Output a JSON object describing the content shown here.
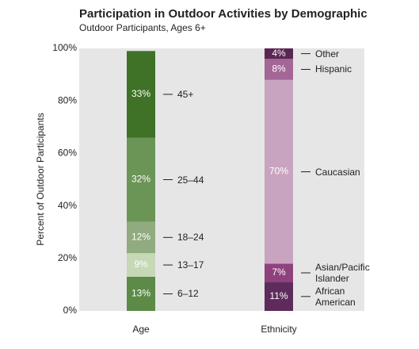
{
  "chart_data": {
    "type": "stacked_bar",
    "title": "Participation in Outdoor Activities by Demographic",
    "subtitle": "Outdoor Participants, Ages 6+",
    "y_label": "Percent of Outdoor Participants",
    "ylim": [
      0,
      100
    ],
    "yticks": [
      {
        "value": 0,
        "label": "0%"
      },
      {
        "value": 20,
        "label": "20%"
      },
      {
        "value": 40,
        "label": "40%"
      },
      {
        "value": 60,
        "label": "60%"
      },
      {
        "value": 80,
        "label": "80%"
      },
      {
        "value": 100,
        "label": "100%"
      }
    ],
    "bars": [
      {
        "category": "Age",
        "names": [
          "6–12",
          "13–17",
          "18–24",
          "25–44",
          "45+"
        ],
        "values": [
          13,
          9,
          12,
          32,
          33
        ],
        "value_labels": [
          "13%",
          "9%",
          "12%",
          "32%",
          "33%"
        ],
        "colors": [
          "#5b8b47",
          "#c6d8b6",
          "#90ab7f",
          "#6b9556",
          "#3f7127"
        ]
      },
      {
        "category": "Ethnicity",
        "names": [
          "African American",
          "Asian/Pacific Islander",
          "Caucasian",
          "Hispanic",
          "Other"
        ],
        "values": [
          11,
          7,
          70,
          8,
          4
        ],
        "value_labels": [
          "11%",
          "7%",
          "70%",
          "8%",
          "4%"
        ],
        "colors": [
          "#5f2b5d",
          "#8f417e",
          "#c9a4c1",
          "#a46597",
          "#5a2653"
        ]
      }
    ]
  }
}
